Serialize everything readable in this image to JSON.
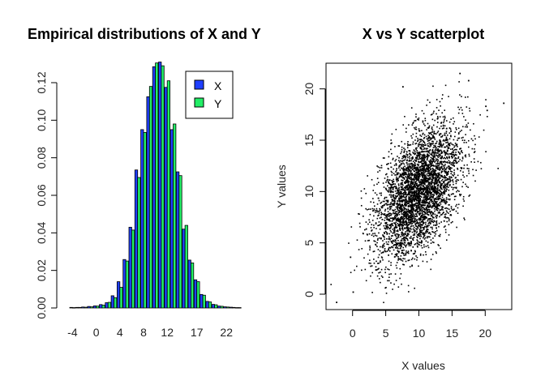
{
  "chart_data": [
    {
      "type": "bar",
      "title": "Empirical distributions of X and Y",
      "xlabel": "",
      "ylabel": "",
      "x_tick_labels": [
        "-4",
        "0",
        "4",
        "8",
        "12",
        "17",
        "22"
      ],
      "y_ticks": [
        0.0,
        0.02,
        0.04,
        0.06,
        0.08,
        0.1,
        0.12
      ],
      "y_tick_labels": [
        "0.00",
        "0.02",
        "0.04",
        "0.06",
        "0.08",
        "0.10",
        "0.12"
      ],
      "ylim": [
        0,
        0.13
      ],
      "categories": [
        "-4",
        "-3",
        "-2",
        "-1",
        "0",
        "1",
        "2",
        "3",
        "4",
        "5",
        "6",
        "7",
        "8",
        "9",
        "10",
        "11",
        "12",
        "13",
        "14",
        "15",
        "16",
        "17",
        "18",
        "19",
        "20",
        "21",
        "22",
        "23",
        "24"
      ],
      "series": [
        {
          "name": "X",
          "color": "#1f3fff",
          "values": [
            0.0003,
            0.0003,
            0.0005,
            0.0008,
            0.0011,
            0.0018,
            0.0028,
            0.0065,
            0.014,
            0.0258,
            0.043,
            0.0735,
            0.095,
            0.1125,
            0.1285,
            0.131,
            0.1175,
            0.095,
            0.0725,
            0.042,
            0.0255,
            0.015,
            0.0072,
            0.0035,
            0.0019,
            0.001,
            0.0006,
            0.0004,
            0.0002
          ]
        },
        {
          "name": "Y",
          "color": "#22ee66",
          "values": [
            0.0002,
            0.0003,
            0.0004,
            0.0006,
            0.001,
            0.0015,
            0.003,
            0.0055,
            0.011,
            0.025,
            0.0415,
            0.0695,
            0.0935,
            0.118,
            0.1305,
            0.129,
            0.121,
            0.098,
            0.0705,
            0.044,
            0.024,
            0.014,
            0.0068,
            0.0032,
            0.0017,
            0.0009,
            0.0005,
            0.0003,
            0.0002
          ]
        }
      ],
      "legend": {
        "position": "top-right",
        "entries": [
          "X",
          "Y"
        ]
      },
      "grid": false
    },
    {
      "type": "scatter",
      "title": "X vs Y scatterplot",
      "xlabel": "X values",
      "ylabel": "Y values",
      "xlim": [
        -4,
        24
      ],
      "ylim": [
        -1.5,
        22.5
      ],
      "x_ticks": [
        0,
        5,
        10,
        15,
        20
      ],
      "y_ticks": [
        0,
        5,
        10,
        15,
        20
      ],
      "x_tick_labels": [
        "0",
        "5",
        "10",
        "15",
        "20"
      ],
      "y_tick_labels": [
        "0",
        "5",
        "10",
        "15",
        "20"
      ],
      "point_color": "#000000",
      "distribution": {
        "mean_x": 10,
        "mean_y": 10,
        "sd_x": 3.2,
        "sd_y": 3.2,
        "correlation": 0.5,
        "n_points": 4000
      },
      "outliers": [
        {
          "x": 22.8,
          "y": 18.6
        },
        {
          "x": 20.3,
          "y": 17.9
        },
        {
          "x": -2.4,
          "y": -0.8
        },
        {
          "x": 16.2,
          "y": 21.5
        },
        {
          "x": 17.5,
          "y": 20.8
        },
        {
          "x": 7.6,
          "y": 20.2
        },
        {
          "x": -0.3,
          "y": 3.6
        },
        {
          "x": 0.1,
          "y": 0.2
        },
        {
          "x": 20.1,
          "y": 18.3
        }
      ],
      "grid": false
    }
  ]
}
